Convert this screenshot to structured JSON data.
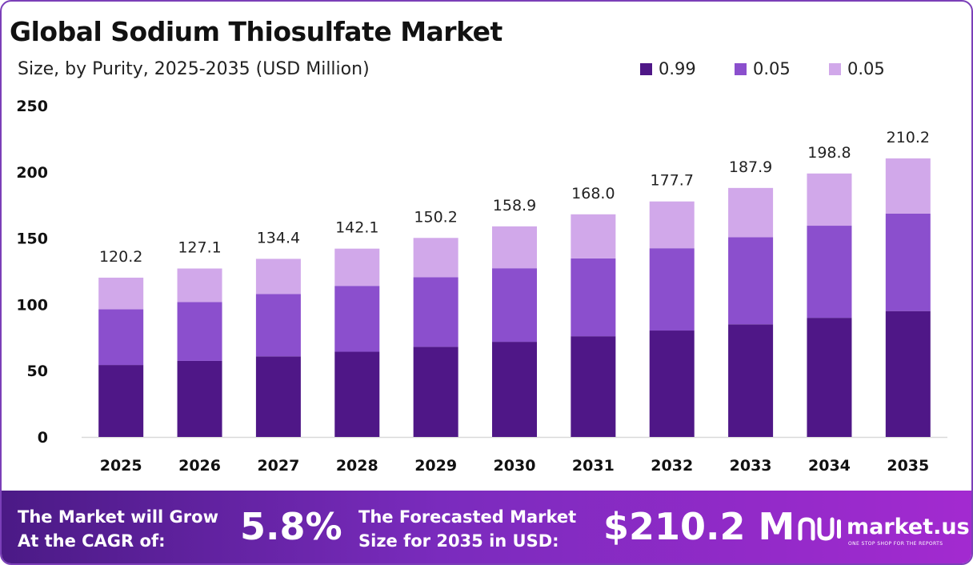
{
  "header": {
    "title": "Global Sodium Thiosulfate Market",
    "subtitle": "Size, by Purity, 2025-2035 (USD Million)"
  },
  "colors": {
    "series": [
      "#4f1787",
      "#8b4fcd",
      "#d1a8ea"
    ],
    "axis_text": "#111111",
    "footer_start": "#4b1a86",
    "footer_end": "#a32ad0"
  },
  "chart_data": {
    "type": "bar",
    "stacked": true,
    "categories": [
      "2025",
      "2026",
      "2027",
      "2028",
      "2029",
      "2030",
      "2031",
      "2032",
      "2033",
      "2034",
      "2035"
    ],
    "series": [
      {
        "name": "0.99",
        "values": [
          54.3,
          57.4,
          60.8,
          64.3,
          68.0,
          71.8,
          76.0,
          80.3,
          85.0,
          89.9,
          95.0
        ]
      },
      {
        "name": "0.05",
        "values": [
          42.0,
          44.4,
          47.0,
          49.7,
          52.5,
          55.5,
          58.7,
          62.1,
          65.7,
          69.5,
          73.5
        ]
      },
      {
        "name": "0.05",
        "values": [
          23.9,
          25.3,
          26.6,
          28.1,
          29.7,
          31.6,
          33.3,
          35.3,
          37.2,
          39.4,
          41.7
        ]
      }
    ],
    "totals": [
      "120.2",
      "127.1",
      "134.4",
      "142.1",
      "150.2",
      "158.9",
      "168.0",
      "177.7",
      "187.9",
      "198.8",
      "210.2"
    ],
    "ylim": [
      0,
      250
    ],
    "yticks": [
      "0",
      "50",
      "100",
      "150",
      "200",
      "250"
    ],
    "grid": false,
    "legend_position": "top-right",
    "xlabel": "",
    "ylabel": ""
  },
  "footer": {
    "cagr_label_line1": "The Market will Grow",
    "cagr_label_line2": "At the CAGR of:",
    "cagr_value": "5.8%",
    "forecast_label_line1": "The Forecasted Market",
    "forecast_label_line2": "Size for 2035 in USD:",
    "forecast_value": "$210.2 M",
    "brand_name": "market.us",
    "brand_tagline": "ONE STOP SHOP FOR THE REPORTS",
    "brand_icon": "market-us-logo-icon"
  }
}
